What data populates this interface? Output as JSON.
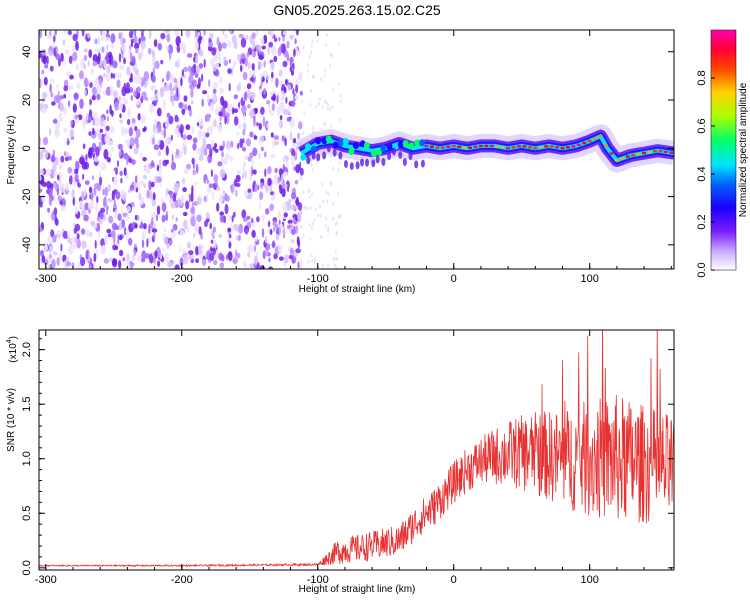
{
  "chart_data": [
    {
      "type": "heatmap",
      "title": "GN05.2025.263.15.02.C25",
      "xlabel": "Height of straight line (km)",
      "ylabel": "Frequency (Hz)",
      "xlim": [
        -305,
        162
      ],
      "ylim": [
        -50,
        49
      ],
      "xticks": [
        "-300",
        "-200",
        "-100",
        "0",
        "100"
      ],
      "yticks": [
        "40",
        "20",
        "0",
        "-20",
        "-40"
      ],
      "colorbar": {
        "label": "Normalized spectral amplitude",
        "range": [
          0.0,
          1.0
        ],
        "ticks": [
          "0.0",
          "0.2",
          "0.4",
          "0.6",
          "0.8"
        ],
        "colors": [
          "#ffffff",
          "#b882ff",
          "#8a2be2",
          "#5b00ff",
          "#0000ff",
          "#00e5ff",
          "#00ff66",
          "#d8ff00",
          "#ffae00",
          "#ff0000",
          "#ff00b4"
        ]
      },
      "noise_region_x": [
        -305,
        -112
      ],
      "ridge": {
        "x": [
          -112,
          -100,
          -90,
          -80,
          -70,
          -60,
          -50,
          -40,
          -30,
          -20,
          -10,
          0,
          10,
          20,
          30,
          40,
          50,
          60,
          70,
          80,
          90,
          100,
          108,
          113,
          120,
          130,
          140,
          150,
          162
        ],
        "freq": [
          -2,
          2,
          3,
          1,
          0,
          -1,
          0,
          2,
          0,
          1,
          0,
          1,
          0,
          1,
          1,
          0,
          1,
          0,
          1,
          0,
          1,
          3,
          5,
          0,
          -5,
          -3,
          -2,
          -1,
          -2
        ]
      }
    },
    {
      "type": "line",
      "title": "",
      "xlabel": "Height of straight line (km)",
      "ylabel": "SNR (10 * v/v)",
      "yscale_label": "(x10",
      "yscale_exp": "4",
      "xlim": [
        -305,
        162
      ],
      "ylim": [
        -0.02,
        2.18
      ],
      "xticks": [
        "-300",
        "-200",
        "-100",
        "0",
        "100"
      ],
      "yticks": [
        "0.0",
        "0.5",
        "1.0",
        "1.5",
        "2.0"
      ],
      "color": "#e83232",
      "trend": {
        "x": [
          -305,
          -200,
          -100,
          -85,
          -60,
          -40,
          -25,
          -15,
          -5,
          0,
          10,
          20,
          30,
          40,
          60,
          80,
          100,
          120,
          140,
          162
        ],
        "y": [
          0.02,
          0.02,
          0.03,
          0.15,
          0.2,
          0.25,
          0.45,
          0.55,
          0.7,
          0.78,
          0.9,
          0.98,
          1.02,
          1.05,
          1.05,
          1.0,
          1.0,
          1.0,
          0.95,
          0.9
        ]
      },
      "amplitude": {
        "x": [
          -305,
          -100,
          -85,
          -40,
          -10,
          20,
          50,
          80,
          100,
          120,
          140,
          162
        ],
        "y": [
          0.005,
          0.01,
          0.12,
          0.15,
          0.18,
          0.22,
          0.35,
          0.45,
          0.55,
          0.6,
          0.55,
          0.5
        ]
      }
    }
  ]
}
